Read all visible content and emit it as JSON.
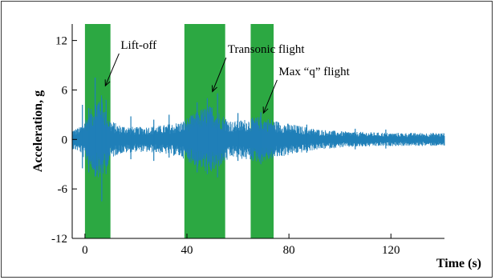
{
  "chart_data": {
    "type": "line",
    "xlabel": "Time (s)",
    "ylabel": "Acceleration, g",
    "xlim": [
      -5,
      141
    ],
    "ylim": [
      -12,
      14
    ],
    "xticks": [
      0,
      40,
      80,
      120
    ],
    "yticks": [
      -12,
      -6,
      0,
      6,
      12
    ],
    "signal_color": "#1f7fb8",
    "band_color": "#2ca842",
    "highlight_bands": [
      {
        "start": 0,
        "end": 10
      },
      {
        "start": 39,
        "end": 55
      },
      {
        "start": 65,
        "end": 74
      }
    ],
    "annotations": [
      {
        "text": "Lift-off",
        "text_x": 14,
        "text_y": 11,
        "arrow_to_x": 8,
        "arrow_to_y": 6.5
      },
      {
        "text": "Transonic flight",
        "text_x": 56,
        "text_y": 10.5,
        "arrow_to_x": 50,
        "arrow_to_y": 5.8
      },
      {
        "text": "Max “q” flight",
        "text_x": 76,
        "text_y": 7.8,
        "arrow_to_x": 70,
        "arrow_to_y": 3.2
      }
    ],
    "envelope": {
      "t": [
        -5,
        -2,
        0,
        3,
        6,
        8,
        10,
        13,
        20,
        30,
        38,
        42,
        46,
        50,
        54,
        58,
        63,
        68,
        72,
        76,
        82,
        90,
        100,
        110,
        120,
        130,
        141
      ],
      "upper": [
        1.2,
        1.5,
        2.5,
        4,
        6,
        3.8,
        2.4,
        1.8,
        1.5,
        1.7,
        2.2,
        3,
        3.8,
        4.2,
        3,
        2.2,
        2.5,
        2.8,
        2.6,
        2.2,
        1.8,
        1.3,
        1.0,
        0.9,
        0.8,
        0.8,
        0.8
      ],
      "lower": [
        -1.2,
        -1.5,
        -2.5,
        -3.8,
        -5.2,
        -3.8,
        -2.4,
        -1.8,
        -1.5,
        -1.7,
        -2.2,
        -3,
        -3.8,
        -4.2,
        -3,
        -2.2,
        -2.5,
        -2.8,
        -2.6,
        -2.2,
        -1.8,
        -1.3,
        -1.0,
        -0.9,
        -0.8,
        -0.8,
        -0.8
      ]
    },
    "spikes": [
      {
        "t": -1,
        "min": -3.5,
        "max": 4.2
      },
      {
        "t": 1.5,
        "min": -4.0,
        "max": 3.8
      },
      {
        "t": 4,
        "min": -4.5,
        "max": 7.5
      },
      {
        "t": 6.6,
        "min": -7.5,
        "max": 5.0
      },
      {
        "t": 8.3,
        "min": -4.2,
        "max": 4.8
      },
      {
        "t": 18,
        "min": -2.4,
        "max": 2.8
      },
      {
        "t": 27,
        "min": -2.6,
        "max": 2.4
      },
      {
        "t": 33,
        "min": -2.2,
        "max": 3.0
      },
      {
        "t": 44,
        "min": -4.0,
        "max": 4.5
      },
      {
        "t": 48,
        "min": -4.2,
        "max": 5.0
      },
      {
        "t": 52,
        "min": -4.6,
        "max": 5.6
      },
      {
        "t": 60,
        "min": -2.6,
        "max": 3.2
      },
      {
        "t": 69,
        "min": -3.0,
        "max": 3.3
      },
      {
        "t": 87,
        "min": -1.6,
        "max": 1.8
      },
      {
        "t": 106,
        "min": -1.2,
        "max": 1.3
      },
      {
        "t": 118,
        "min": -1.1,
        "max": 1.2
      }
    ]
  }
}
